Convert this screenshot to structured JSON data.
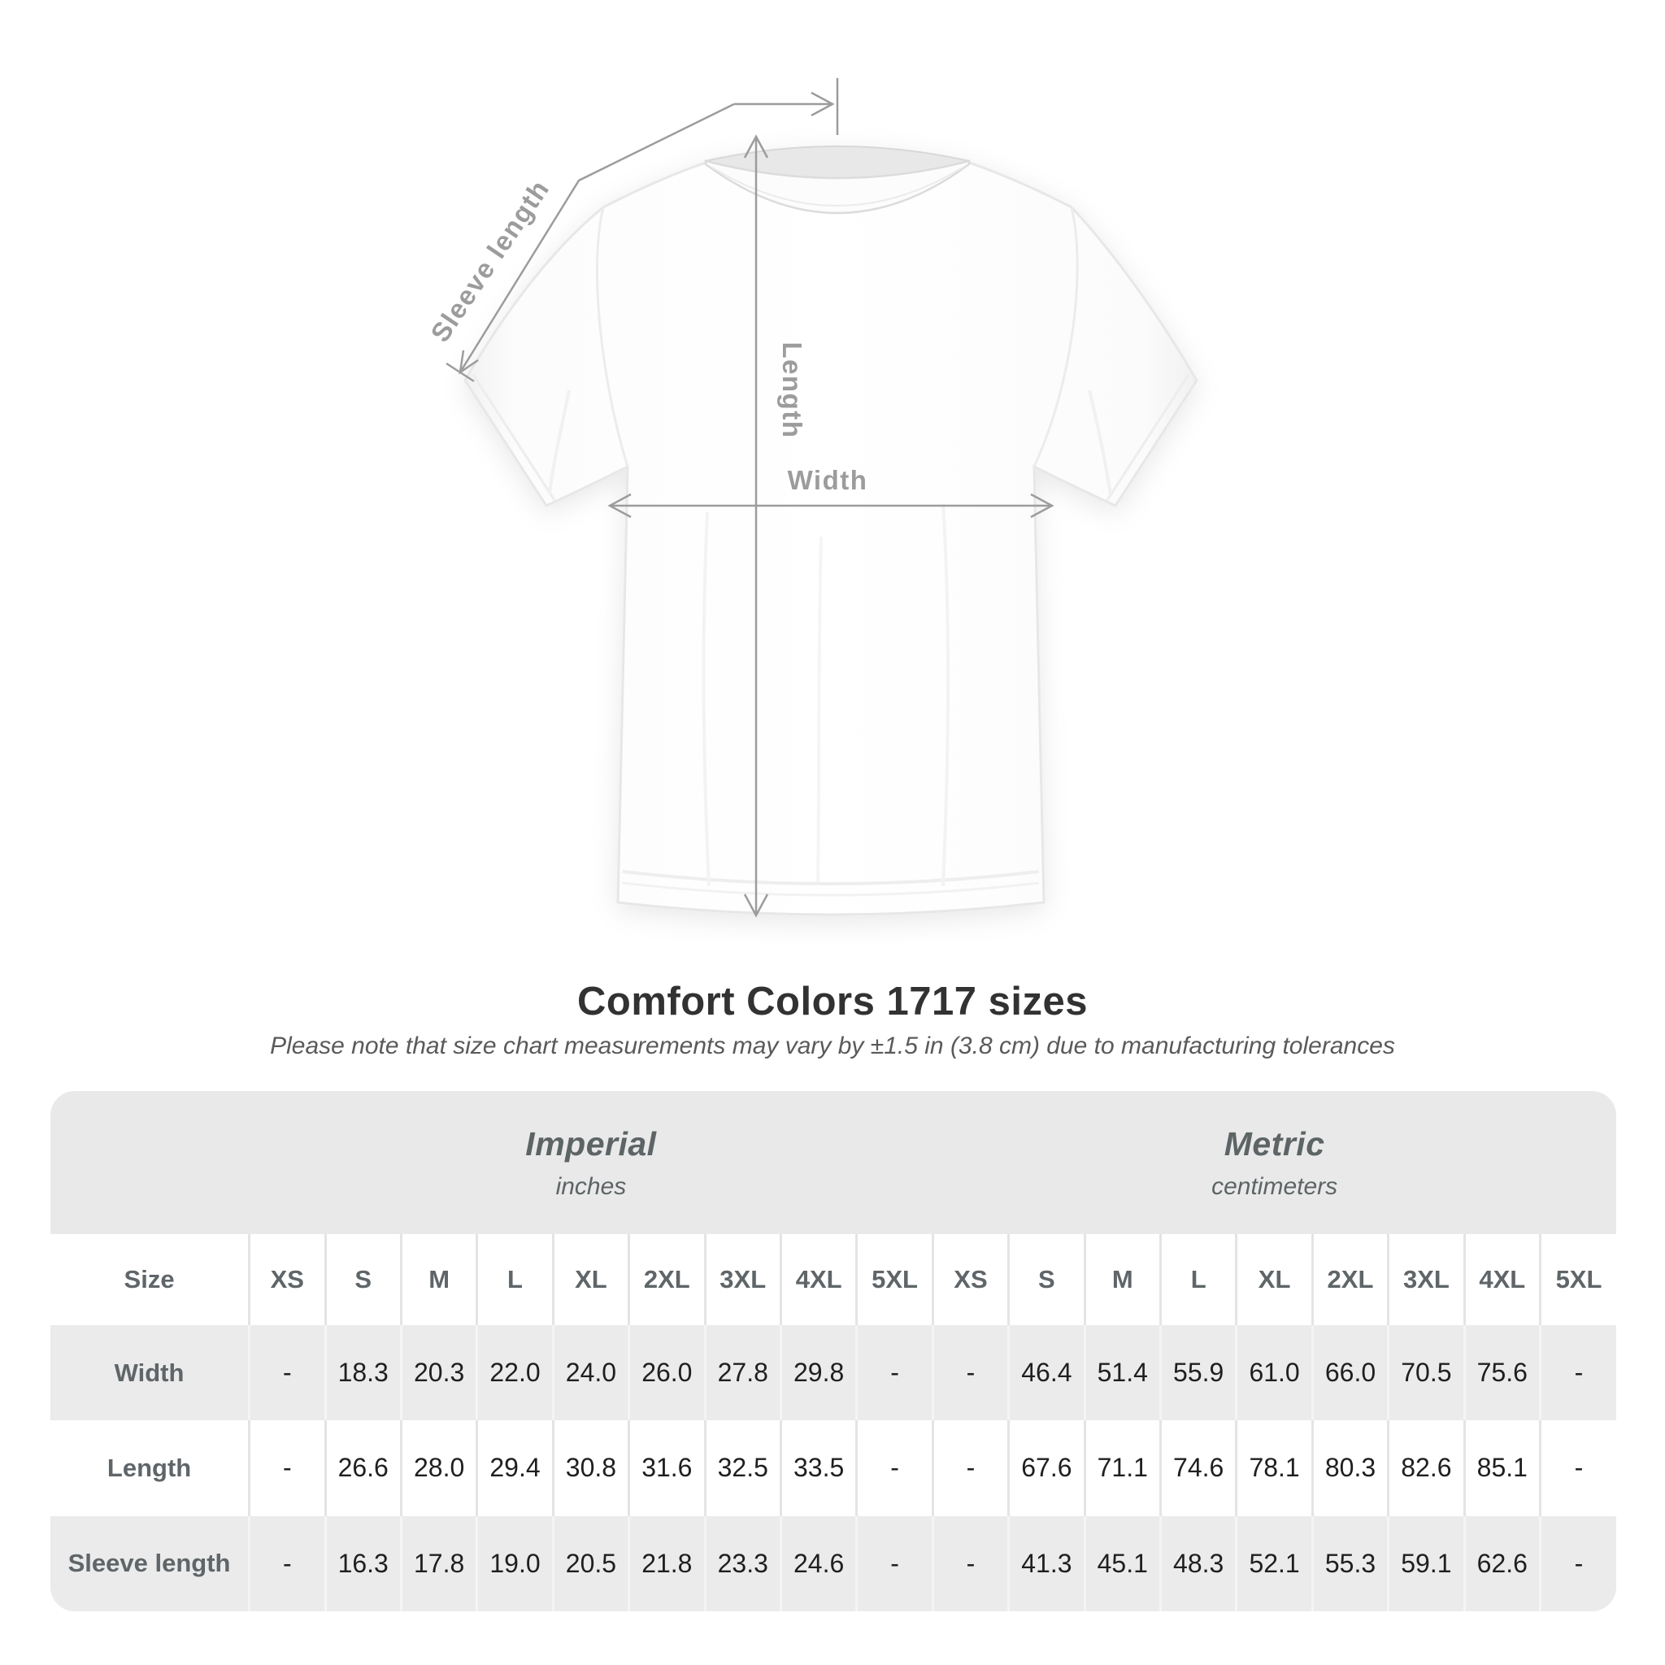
{
  "title": "Comfort Colors 1717 sizes",
  "subtitle": "Please note that size chart measurements may vary by ±1.5 in (3.8 cm) due to manufacturing tolerances",
  "diagram": {
    "sleeve_length_label": "Sleeve length",
    "length_label": "Length",
    "width_label": "Width"
  },
  "chart_data": {
    "type": "table",
    "title": "Comfort Colors 1717 sizes",
    "note": "Please note that size chart measurements may vary by ±1.5 in (3.8 cm) due to manufacturing tolerances",
    "column_groups": [
      {
        "label": "Imperial",
        "unit": "inches",
        "span": 9
      },
      {
        "label": "Metric",
        "unit": "centimeters",
        "span": 9
      }
    ],
    "size_column_header": "Size",
    "size_labels": [
      "XS",
      "S",
      "M",
      "L",
      "XL",
      "2XL",
      "3XL",
      "4XL",
      "5XL"
    ],
    "rows": [
      {
        "label": "Width",
        "imperial": [
          "-",
          "18.3",
          "20.3",
          "22.0",
          "24.0",
          "26.0",
          "27.8",
          "29.8",
          "-"
        ],
        "metric": [
          "-",
          "46.4",
          "51.4",
          "55.9",
          "61.0",
          "66.0",
          "70.5",
          "75.6",
          "-"
        ]
      },
      {
        "label": "Length",
        "imperial": [
          "-",
          "26.6",
          "28.0",
          "29.4",
          "30.8",
          "31.6",
          "32.5",
          "33.5",
          "-"
        ],
        "metric": [
          "-",
          "67.6",
          "71.1",
          "74.6",
          "78.1",
          "80.3",
          "82.6",
          "85.1",
          "-"
        ]
      },
      {
        "label": "Sleeve length",
        "imperial": [
          "-",
          "16.3",
          "17.8",
          "19.0",
          "20.5",
          "21.8",
          "23.3",
          "24.6",
          "-"
        ],
        "metric": [
          "-",
          "41.3",
          "45.1",
          "48.3",
          "52.1",
          "55.3",
          "59.1",
          "62.6",
          "-"
        ]
      }
    ]
  },
  "colors": {
    "measurement_line": "#9c9c9c",
    "title_text": "#323232",
    "subtitle_text": "#5a5a5a",
    "table_band_bg": "#e9e9e9",
    "table_stripe_bg": "#ebebeb",
    "table_header_text": "#5f6568",
    "table_value_text": "#1f1f1f",
    "shirt_outline": "#e7e7e7"
  }
}
